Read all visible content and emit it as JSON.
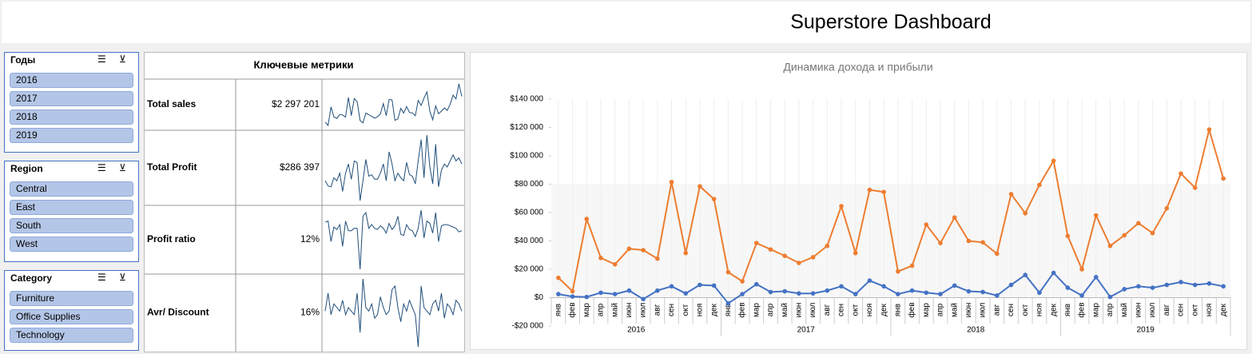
{
  "header": {
    "title": "Superstore Dashboard"
  },
  "slicers": [
    {
      "title": "Годы",
      "items": [
        "2016",
        "2017",
        "2018",
        "2019"
      ]
    },
    {
      "title": "Region",
      "items": [
        "Central",
        "East",
        "South",
        "West"
      ]
    },
    {
      "title": "Category",
      "items": [
        "Furniture",
        "Office Supplies",
        "Technology"
      ]
    }
  ],
  "metrics": {
    "title": "Ключевые метрики",
    "rows": [
      {
        "label": "Total sales",
        "value": "$2 297 201"
      },
      {
        "label": "Total Profit",
        "value": "$286 397"
      },
      {
        "label": "Profit ratio",
        "value": "12%",
        "trend": [
          17,
          18,
          1,
          13,
          11,
          15,
          -3,
          18,
          10,
          10,
          12,
          12,
          -22,
          22,
          25,
          12,
          15,
          12,
          11,
          14,
          12,
          8,
          16,
          11,
          14,
          22,
          7,
          6,
          15,
          11,
          10,
          5,
          12,
          27,
          4,
          18,
          16,
          8,
          25,
          1,
          14,
          15,
          15,
          14,
          13,
          12,
          9,
          10
        ]
      },
      {
        "label": "Avr/ Discount",
        "value": "16%",
        "trend": [
          15,
          20,
          14,
          17,
          16,
          15,
          18,
          14,
          16,
          15,
          14,
          20,
          9,
          24,
          16,
          15,
          17,
          13,
          14,
          19,
          16,
          14,
          15,
          21,
          22,
          16,
          12,
          17,
          15,
          18,
          16,
          14,
          5,
          22,
          16,
          15,
          14,
          17,
          18,
          15,
          20,
          13,
          17,
          16,
          14,
          18,
          17,
          15
        ]
      }
    ]
  },
  "chart_data": {
    "type": "line",
    "title": "Динамика дохода и прибыли",
    "categories": [
      "янв",
      "фев",
      "мар",
      "апр",
      "май",
      "июн",
      "июл",
      "авг",
      "сен",
      "окт",
      "ноя",
      "дек",
      "янв",
      "фев",
      "мар",
      "апр",
      "май",
      "июн",
      "июл",
      "авг",
      "сен",
      "окт",
      "ноя",
      "дек",
      "янв",
      "фев",
      "мар",
      "апр",
      "май",
      "июн",
      "июл",
      "авг",
      "сен",
      "окт",
      "ноя",
      "дек",
      "янв",
      "фев",
      "мар",
      "апр",
      "май",
      "июн",
      "июл",
      "авг",
      "сен",
      "окт",
      "ноя",
      "дек"
    ],
    "year_labels": [
      "2016",
      "2017",
      "2018",
      "2019"
    ],
    "series": [
      {
        "color": "#ed7d31",
        "values": [
          14000,
          4500,
          55500,
          28000,
          23500,
          34500,
          33500,
          27500,
          81500,
          31500,
          78500,
          69500,
          18000,
          11500,
          38500,
          34000,
          29500,
          24500,
          28500,
          36500,
          64500,
          31500,
          76000,
          74500,
          18500,
          22500,
          51500,
          38500,
          56500,
          40000,
          39000,
          31000,
          73000,
          59500,
          79500,
          96500,
          43500,
          20000,
          58000,
          36500,
          44000,
          52500,
          45500,
          63000,
          87500,
          77500,
          118500,
          84000
        ]
      },
      {
        "color": "#4472c4",
        "values": [
          2500,
          800,
          500,
          3500,
          2500,
          5000,
          -1000,
          5000,
          8000,
          3000,
          9000,
          8500,
          -4000,
          2500,
          9500,
          4000,
          4500,
          3000,
          3000,
          5000,
          8000,
          2500,
          12000,
          8000,
          2500,
          5000,
          3500,
          2500,
          8500,
          4500,
          4000,
          1500,
          9000,
          16000,
          3500,
          17500,
          7000,
          1500,
          14500,
          500,
          6000,
          8000,
          7000,
          9000,
          11000,
          9000,
          10000,
          8000
        ]
      }
    ],
    "ylim": [
      -20000,
      140000
    ],
    "yticks": [
      {
        "value": -20000,
        "label": "-$20 000"
      },
      {
        "value": 0,
        "label": "$0"
      },
      {
        "value": 20000,
        "label": "$20 000"
      },
      {
        "value": 40000,
        "label": "$40 000"
      },
      {
        "value": 60000,
        "label": "$60 000"
      },
      {
        "value": 80000,
        "label": "$80 000"
      },
      {
        "value": 100000,
        "label": "$100 000"
      },
      {
        "value": 120000,
        "label": "$120 000"
      },
      {
        "value": 140000,
        "label": "$140 000"
      }
    ]
  }
}
